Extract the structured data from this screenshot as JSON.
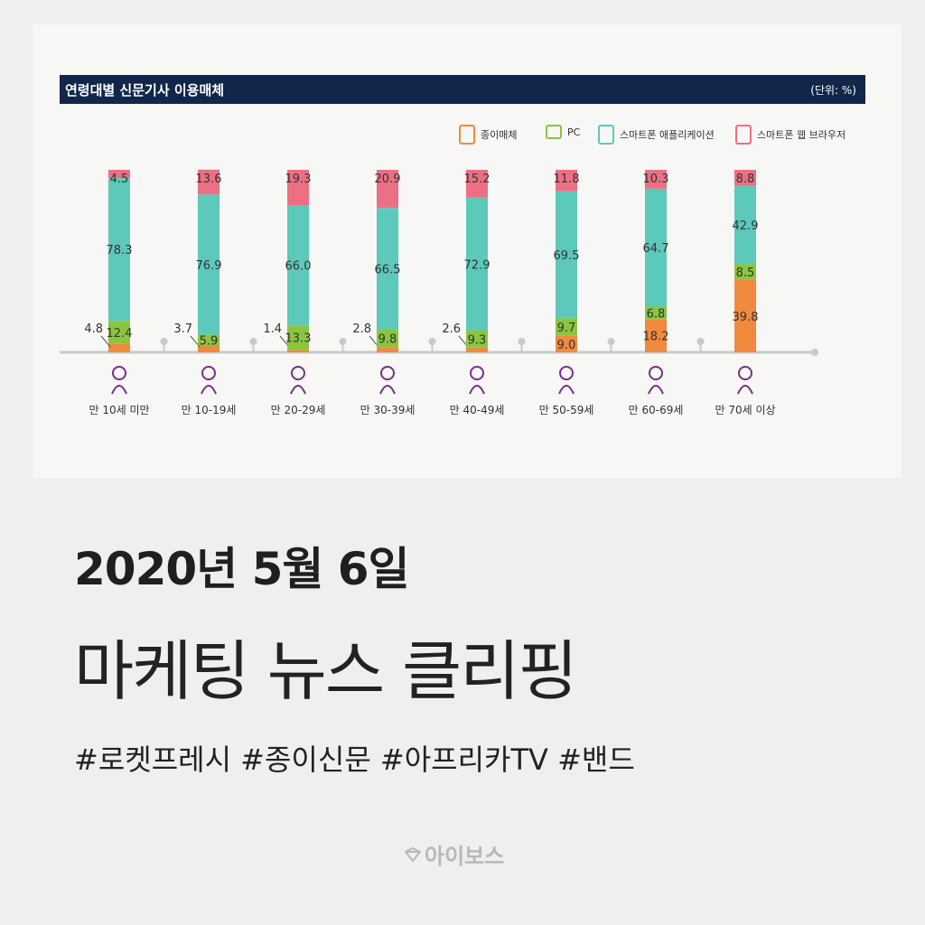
{
  "header": {
    "title": "연령대별 신문기사 이용매체",
    "unit": "(단위: %)"
  },
  "legend": [
    {
      "label": "종이매체",
      "color": "#ef8a3f",
      "icon": "newspaper-icon"
    },
    {
      "label": "PC",
      "color": "#8bc53f",
      "icon": "computer-icon"
    },
    {
      "label": "스마트폰 애플리케이션",
      "color": "#5cc9ba",
      "icon": "smartphone-app-icon"
    },
    {
      "label": "스마트폰 웹 브라우저",
      "color": "#ec6f84",
      "icon": "smartphone-browser-icon"
    }
  ],
  "chart_data": {
    "type": "bar",
    "stacked": true,
    "categories": [
      "만 10세 미만",
      "만 10-19세",
      "만 20-29세",
      "만 30-39세",
      "만 40-49세",
      "만 50-59세",
      "만 60-69세",
      "만 70세 이상"
    ],
    "series": [
      {
        "name": "종이매체",
        "color": "#ef8a3f",
        "values": [
          4.8,
          3.7,
          1.4,
          2.8,
          2.6,
          9.0,
          18.2,
          39.8
        ]
      },
      {
        "name": "PC",
        "color": "#8bc53f",
        "values": [
          12.4,
          5.9,
          13.3,
          9.8,
          9.3,
          9.7,
          6.8,
          8.5
        ]
      },
      {
        "name": "스마트폰 애플리케이션",
        "color": "#5cc9ba",
        "values": [
          78.3,
          76.9,
          66.0,
          66.5,
          72.9,
          69.5,
          64.7,
          42.9
        ]
      },
      {
        "name": "스마트폰 웹 브라우저",
        "color": "#ec6f84",
        "values": [
          4.5,
          13.6,
          19.3,
          20.9,
          15.2,
          11.8,
          10.3,
          8.8
        ]
      }
    ],
    "title": "연령대별 신문기사 이용매체",
    "ylabel": "",
    "unit": "(단위: %)",
    "ylim": [
      0,
      100
    ],
    "grid": false,
    "legend_position": "top-right",
    "outside_labels": [
      true,
      true,
      true,
      true,
      true,
      false,
      false,
      false
    ],
    "age_icons": [
      "child-icon",
      "teen-icon",
      "young-adult-icon",
      "adult-icon",
      "middle-aged-icon",
      "senior-icon",
      "elderly-icon",
      "aged-icon"
    ]
  },
  "headline": {
    "date": "2020년 5월 6일",
    "title": "마케팅 뉴스 클리핑",
    "hashtags": "#로켓프레시 #종이신문 #아프리카TV #밴드"
  },
  "brand": {
    "name": "아이보스",
    "icon": "brand-icon"
  }
}
